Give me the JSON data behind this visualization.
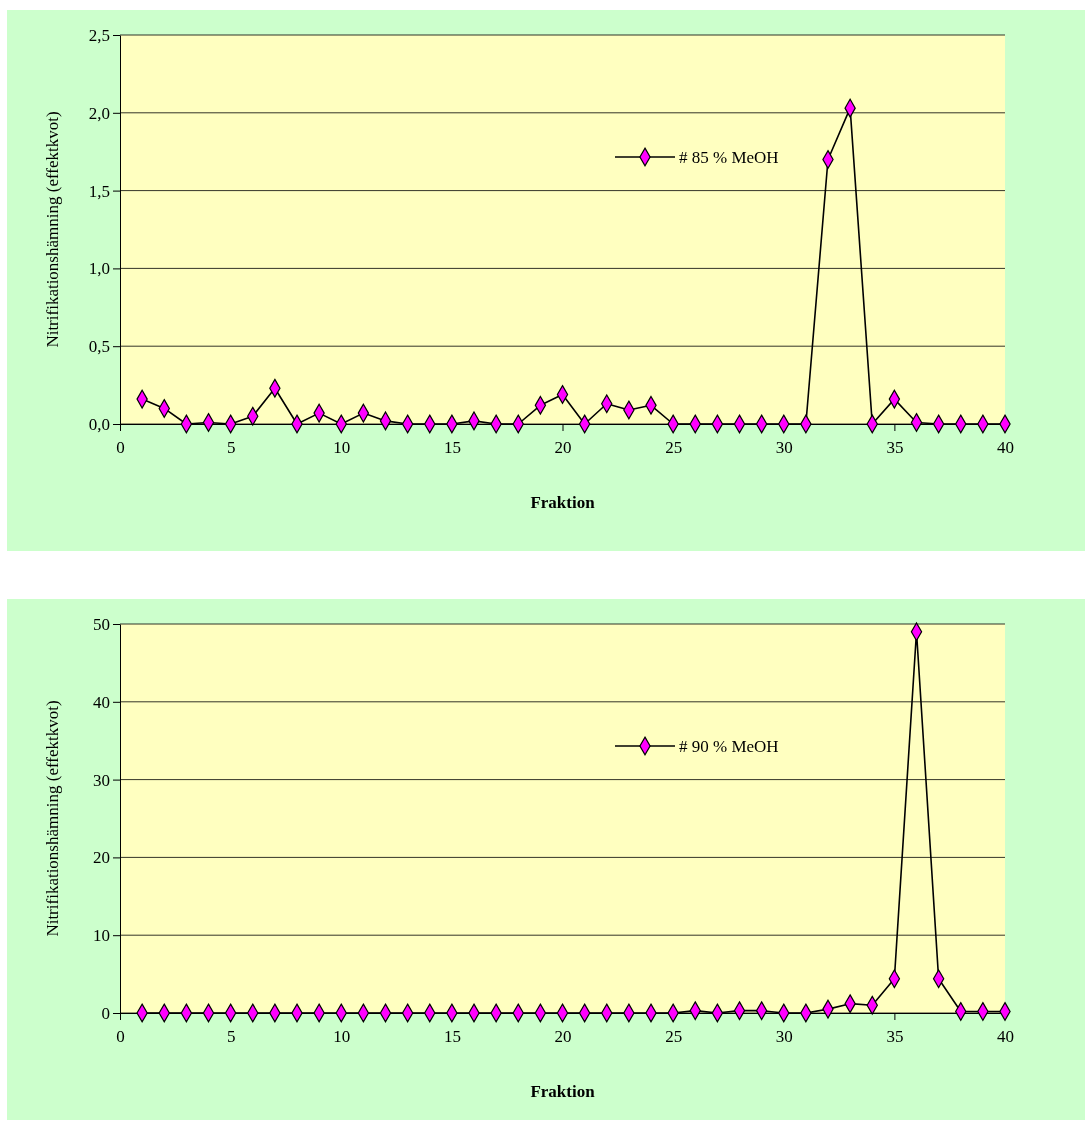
{
  "chart_data": [
    {
      "type": "line",
      "xlabel": "Fraktion",
      "ylabel": "Nitrifikationshämning (effektkvot)",
      "x": [
        1,
        2,
        3,
        4,
        5,
        6,
        7,
        8,
        9,
        10,
        11,
        12,
        13,
        14,
        15,
        16,
        17,
        18,
        19,
        20,
        21,
        22,
        23,
        24,
        25,
        26,
        27,
        28,
        29,
        30,
        31,
        32,
        33,
        34,
        35,
        36,
        37,
        38,
        39,
        40
      ],
      "series": [
        {
          "name": "# 85 % MeOH",
          "color": "#ff00ff",
          "values": [
            0.16,
            0.1,
            0,
            0.01,
            0,
            0.05,
            0.23,
            0,
            0.07,
            0,
            0.07,
            0.02,
            0,
            0,
            0,
            0.02,
            0,
            0,
            0.12,
            0.19,
            0,
            0.13,
            0.09,
            0.12,
            0,
            0,
            0,
            0,
            0,
            0,
            0,
            1.7,
            2.03,
            0,
            0.16,
            0.01,
            0,
            0,
            0,
            0
          ]
        }
      ],
      "xlim": [
        0,
        40
      ],
      "xticks": [
        0,
        5,
        10,
        15,
        20,
        25,
        30,
        35,
        40
      ],
      "ylim": [
        0,
        2.5
      ],
      "yticks": [
        {
          "value": 0,
          "label": "0,0"
        },
        {
          "value": 0.5,
          "label": "0,5"
        },
        {
          "value": 1,
          "label": "1,0"
        },
        {
          "value": 1.5,
          "label": "1,5"
        },
        {
          "value": 2,
          "label": "2,0"
        },
        {
          "value": 2.5,
          "label": "2,5"
        }
      ],
      "grid": "y",
      "legend": "top right",
      "marker": "diamond",
      "line_style": "solid"
    },
    {
      "type": "line",
      "xlabel": "Fraktion",
      "ylabel": "Nitrifikationshämning (effektkvot)",
      "x": [
        1,
        2,
        3,
        4,
        5,
        6,
        7,
        8,
        9,
        10,
        11,
        12,
        13,
        14,
        15,
        16,
        17,
        18,
        19,
        20,
        21,
        22,
        23,
        24,
        25,
        26,
        27,
        28,
        29,
        30,
        31,
        32,
        33,
        34,
        35,
        36,
        37,
        38,
        39,
        40
      ],
      "series": [
        {
          "name": "# 90 % MeOH",
          "color": "#ff00ff",
          "values": [
            0,
            0,
            0,
            0,
            0,
            0,
            0,
            0,
            0,
            0,
            0,
            0,
            0,
            0,
            0,
            0,
            0,
            0,
            0,
            0,
            0,
            0,
            0,
            0,
            0,
            0.3,
            0,
            0.3,
            0.3,
            0,
            0,
            0.5,
            1.2,
            1.0,
            4.4,
            49,
            4.4,
            0.2,
            0.2,
            0.2
          ]
        }
      ],
      "xlim": [
        0,
        40
      ],
      "xticks": [
        0,
        5,
        10,
        15,
        20,
        25,
        30,
        35,
        40
      ],
      "ylim": [
        0,
        50
      ],
      "yticks": [
        0,
        10,
        20,
        30,
        40,
        50
      ],
      "grid": "y",
      "legend": "top right",
      "marker": "diamond",
      "line_style": "solid"
    }
  ]
}
